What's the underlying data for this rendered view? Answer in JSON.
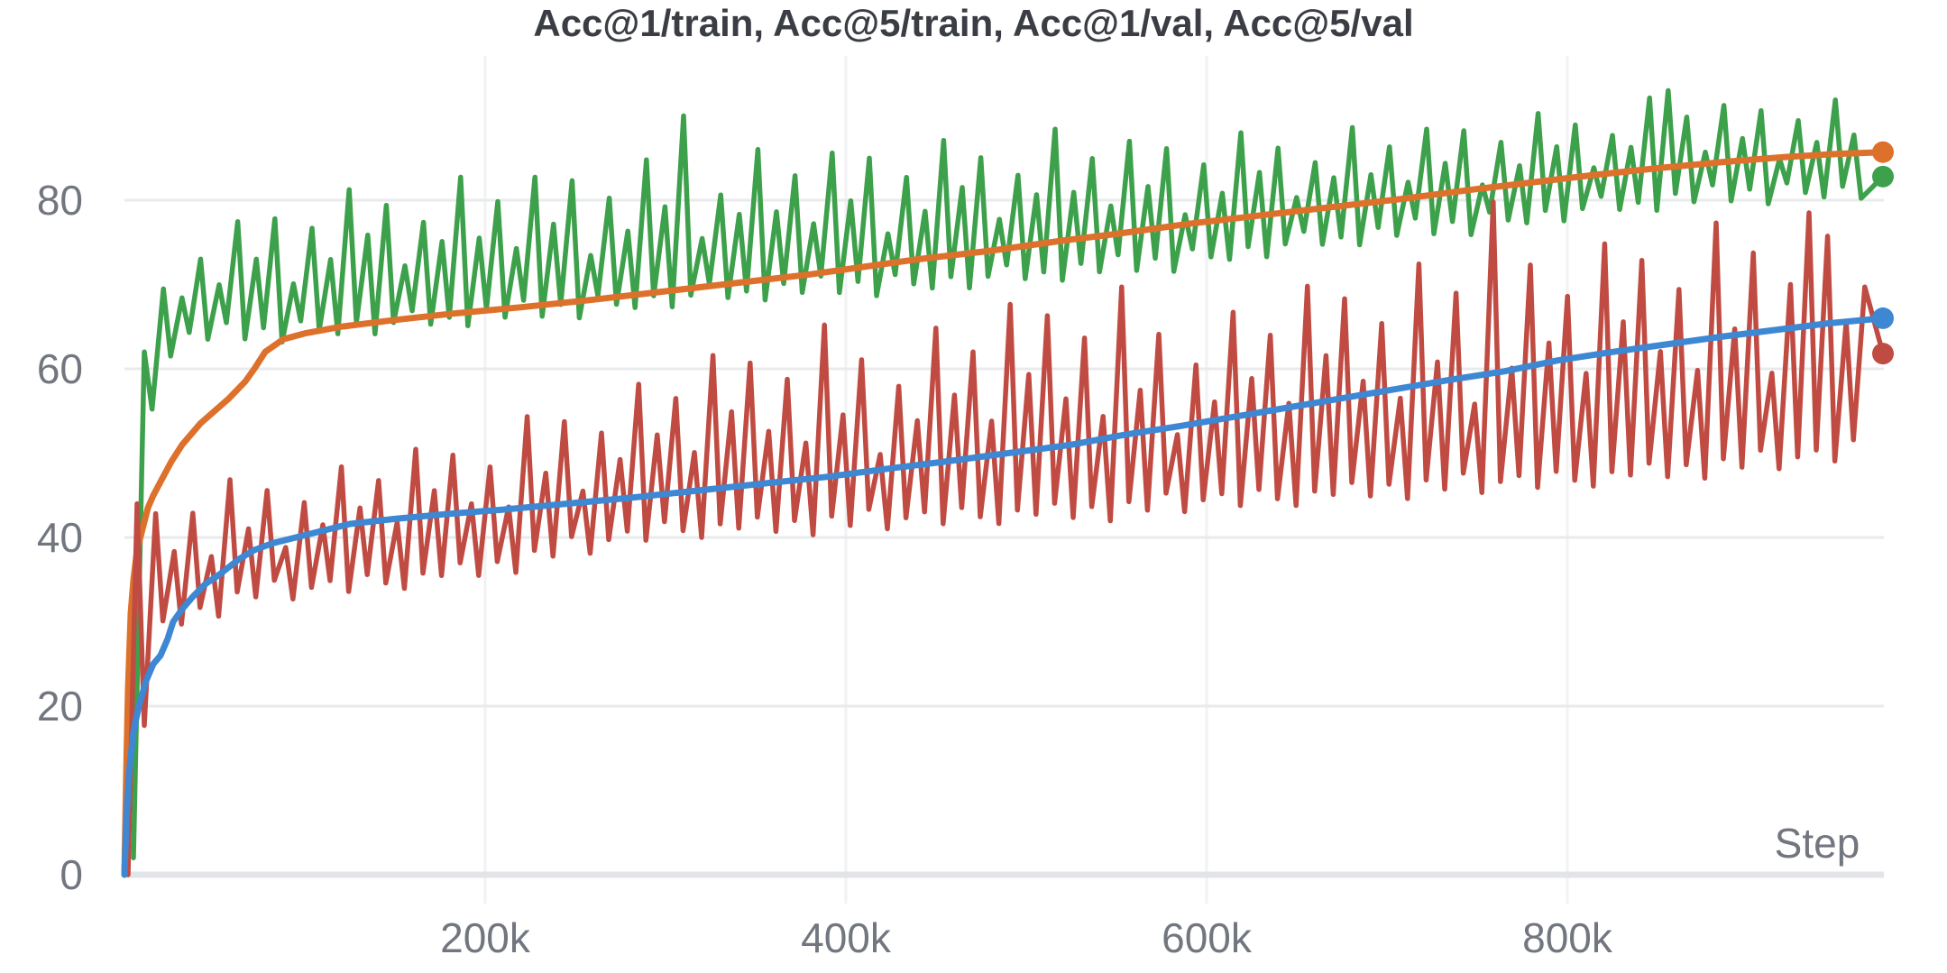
{
  "chart_data": {
    "type": "line",
    "title": "Acc@1/train, Acc@5/train, Acc@1/val, Acc@5/val",
    "xlabel": "Step",
    "x_axis": {
      "min_k": 0,
      "max_k": 1000,
      "ticks": [
        {
          "value_k": 200,
          "label": "200k"
        },
        {
          "value_k": 400,
          "label": "400k"
        },
        {
          "value_k": 600,
          "label": "600k"
        },
        {
          "value_k": 800,
          "label": "800k"
        }
      ]
    },
    "y_axis": {
      "min": 0,
      "max": 100,
      "ticks": [
        0,
        20,
        40,
        60,
        80
      ]
    },
    "grid": {
      "horizontal": true,
      "vertical": true
    },
    "legend": "none",
    "series": [
      {
        "name": "Acc@5/train",
        "slug": "acc5-train",
        "kind": "noisy",
        "color": "#3da04b",
        "line_width": 5.5,
        "z": 1,
        "end_dot": true,
        "head_points_k": [
          [
            5,
            2
          ],
          [
            11,
            62
          ]
        ],
        "final_point_k": [
          975,
          82.8
        ],
        "osc": {
          "start_k": 15.3,
          "period_k": 10.3,
          "peak_offset_k": 6.3,
          "trough_jitter": 1.5,
          "lower_env": [
            [
              15,
              55
            ],
            [
              26,
              63
            ],
            [
              40,
              64
            ],
            [
              70,
              64.5
            ],
            [
              100,
              64.8
            ],
            [
              150,
              65.5
            ],
            [
              200,
              66.5
            ],
            [
              250,
              67.5
            ],
            [
              300,
              68.5
            ],
            [
              350,
              69.3
            ],
            [
              400,
              70
            ],
            [
              450,
              70.5
            ],
            [
              500,
              71.3
            ],
            [
              550,
              72.3
            ],
            [
              600,
              73.5
            ],
            [
              650,
              75
            ],
            [
              700,
              76.3
            ],
            [
              750,
              77.5
            ],
            [
              800,
              78.8
            ],
            [
              850,
              80
            ],
            [
              900,
              81
            ],
            [
              975,
              81.5
            ]
          ],
          "upper_env": [
            [
              10,
              62
            ],
            [
              20,
              69
            ],
            [
              30,
              72
            ],
            [
              45,
              76
            ],
            [
              60,
              78
            ],
            [
              80,
              79
            ],
            [
              100,
              80.5
            ],
            [
              150,
              82
            ],
            [
              200,
              83
            ],
            [
              250,
              84
            ],
            [
              300,
              85
            ],
            [
              350,
              86
            ],
            [
              400,
              86.5
            ],
            [
              450,
              87
            ],
            [
              520,
              88.5
            ],
            [
              570,
              87.5
            ],
            [
              620,
              88
            ],
            [
              670,
              88.5
            ],
            [
              720,
              89
            ],
            [
              770,
              90
            ],
            [
              820,
              91
            ],
            [
              854,
              92.5
            ],
            [
              900,
              91.5
            ],
            [
              940,
              92.5
            ],
            [
              975,
              90
            ]
          ],
          "peak_frac": [
            1,
            0.55,
            0.8,
            0.45,
            0.95,
            0.6,
            0.9,
            0.35,
            0.75,
            0.5,
            1,
            0.65,
            0.85,
            0.4,
            0.7,
            0.55
          ],
          "trough_frac": [
            0.5,
            0.1,
            0.7,
            0.3,
            0.9,
            0.2,
            0.6,
            0,
            0.8,
            0.4,
            0.2,
            0.6,
            0.1,
            0.5,
            0.9,
            0.3
          ],
          "outlier_peaks": [
            [
              310,
              90
            ],
            [
              854,
              93
            ]
          ]
        }
      },
      {
        "name": "Acc@5/val",
        "slug": "acc5-val",
        "kind": "smooth",
        "color": "#dd712c",
        "line_width": 7,
        "z": 2,
        "end_dot": true,
        "points_k": [
          [
            0,
            0
          ],
          [
            1,
            12
          ],
          [
            2,
            22
          ],
          [
            3.5,
            31
          ],
          [
            5,
            35
          ],
          [
            7,
            38.5
          ],
          [
            10,
            41
          ],
          [
            13,
            43.5
          ],
          [
            16,
            45
          ],
          [
            21,
            47
          ],
          [
            26,
            49
          ],
          [
            32,
            51
          ],
          [
            42,
            53.5
          ],
          [
            50,
            55
          ],
          [
            58,
            56.5
          ],
          [
            67,
            58.5
          ],
          [
            72,
            60
          ],
          [
            78,
            62
          ],
          [
            88,
            63.5
          ],
          [
            100,
            64.2
          ],
          [
            120,
            65
          ],
          [
            150,
            65.8
          ],
          [
            180,
            66.5
          ],
          [
            220,
            67.3
          ],
          [
            260,
            68.2
          ],
          [
            300,
            69.2
          ],
          [
            340,
            70.2
          ],
          [
            380,
            71.2
          ],
          [
            410,
            72.1
          ],
          [
            440,
            73
          ],
          [
            480,
            74
          ],
          [
            520,
            75.2
          ],
          [
            550,
            76
          ],
          [
            590,
            77.2
          ],
          [
            630,
            78.2
          ],
          [
            670,
            79.2
          ],
          [
            710,
            80.2
          ],
          [
            745,
            81.2
          ],
          [
            780,
            82.1
          ],
          [
            815,
            83
          ],
          [
            850,
            83.8
          ],
          [
            885,
            84.5
          ],
          [
            920,
            85.1
          ],
          [
            950,
            85.5
          ],
          [
            975,
            85.7
          ]
        ]
      },
      {
        "name": "Acc@1/train",
        "slug": "acc1-train",
        "kind": "noisy",
        "color": "#c04b42",
        "line_width": 5.5,
        "z": 3,
        "end_dot": true,
        "head_points_k": [
          [
            2,
            0
          ],
          [
            7,
            44
          ]
        ],
        "final_point_k": [
          975,
          61.8
        ],
        "osc": {
          "start_k": 11,
          "period_k": 10.3,
          "peak_offset_k": 6.3,
          "trough_jitter": 1.5,
          "lower_env": [
            [
              11,
              18
            ],
            [
              20,
              29
            ],
            [
              30,
              30.5
            ],
            [
              50,
              32
            ],
            [
              70,
              33.5
            ],
            [
              100,
              34
            ],
            [
              150,
              35
            ],
            [
              200,
              36.5
            ],
            [
              250,
              39
            ],
            [
              300,
              41
            ],
            [
              350,
              41.5
            ],
            [
              400,
              42
            ],
            [
              450,
              42.5
            ],
            [
              500,
              43
            ],
            [
              550,
              43.5
            ],
            [
              600,
              44.5
            ],
            [
              650,
              45
            ],
            [
              700,
              46
            ],
            [
              750,
              46.5
            ],
            [
              800,
              47
            ],
            [
              850,
              48
            ],
            [
              900,
              49
            ],
            [
              950,
              50
            ],
            [
              975,
              52
            ]
          ],
          "upper_env": [
            [
              10,
              44
            ],
            [
              20,
              45
            ],
            [
              30,
              47
            ],
            [
              50,
              46.5
            ],
            [
              75,
              47.5
            ],
            [
              100,
              48.5
            ],
            [
              150,
              50
            ],
            [
              200,
              52
            ],
            [
              250,
              57
            ],
            [
              300,
              60
            ],
            [
              350,
              63
            ],
            [
              380,
              65.5
            ],
            [
              420,
              64
            ],
            [
              450,
              66
            ],
            [
              500,
              68
            ],
            [
              540,
              71
            ],
            [
              580,
              67
            ],
            [
              620,
              68
            ],
            [
              660,
              70
            ],
            [
              700,
              72
            ],
            [
              740,
              73
            ],
            [
              800,
              74
            ],
            [
              850,
              76
            ],
            [
              900,
              78
            ],
            [
              930,
              79
            ],
            [
              975,
              73
            ]
          ],
          "peak_frac": [
            0.9,
            0.5,
            0.75,
            0.4,
            1,
            0.55,
            0.85,
            0.35,
            0.7,
            0.5,
            0.95,
            0.6,
            0.8,
            0.45,
            1,
            0.65
          ],
          "trough_frac": [
            0.4,
            0.8,
            0.2,
            0.6,
            0,
            0.7,
            0.3,
            0.9,
            0.1,
            0.5,
            0.7,
            0.2,
            0.8,
            0.4,
            0.1,
            0.6
          ],
          "outlier_peaks": [
            [
              756,
              79.8
            ],
            [
              930,
              78.5
            ]
          ]
        }
      },
      {
        "name": "Acc@1/val",
        "slug": "acc1-val",
        "kind": "smooth",
        "color": "#3d87d3",
        "line_width": 7,
        "z": 4,
        "end_dot": true,
        "points_k": [
          [
            0,
            0
          ],
          [
            1,
            6
          ],
          [
            2.5,
            12
          ],
          [
            5,
            17
          ],
          [
            8,
            20
          ],
          [
            12,
            23
          ],
          [
            16,
            25
          ],
          [
            20,
            26
          ],
          [
            24,
            28
          ],
          [
            27,
            30
          ],
          [
            32,
            31.5
          ],
          [
            38,
            33
          ],
          [
            45,
            34.5
          ],
          [
            52,
            35.5
          ],
          [
            58,
            36.5
          ],
          [
            64,
            37.5
          ],
          [
            72,
            38.5
          ],
          [
            82,
            39.3
          ],
          [
            95,
            40
          ],
          [
            110,
            40.8
          ],
          [
            125,
            41.6
          ],
          [
            150,
            42.2
          ],
          [
            180,
            42.8
          ],
          [
            210,
            43.3
          ],
          [
            245,
            44
          ],
          [
            280,
            44.7
          ],
          [
            315,
            45.5
          ],
          [
            350,
            46.3
          ],
          [
            390,
            47.2
          ],
          [
            425,
            48.2
          ],
          [
            455,
            49
          ],
          [
            490,
            50
          ],
          [
            525,
            51
          ],
          [
            555,
            52.2
          ],
          [
            585,
            53.2
          ],
          [
            615,
            54.3
          ],
          [
            645,
            55.4
          ],
          [
            675,
            56.5
          ],
          [
            705,
            57.6
          ],
          [
            735,
            58.7
          ],
          [
            765,
            59.7
          ],
          [
            795,
            61
          ],
          [
            825,
            62
          ],
          [
            855,
            62.9
          ],
          [
            885,
            63.8
          ],
          [
            915,
            64.6
          ],
          [
            945,
            65.4
          ],
          [
            975,
            66
          ]
        ]
      }
    ],
    "end_values": {
      "acc5-val": 85.7,
      "acc5-train": 82.8,
      "acc1-val": 66.0,
      "acc1-train": 61.8
    }
  },
  "style": {
    "accent_green": "#3da04b",
    "accent_orange": "#dd712c",
    "accent_red": "#c04b42",
    "accent_blue": "#3d87d3",
    "tick_text": "#72767f",
    "title_text": "#3a3d44",
    "gridline": "#e9eaec",
    "baseline": "#e3e4e7",
    "background": "#ffffff"
  }
}
